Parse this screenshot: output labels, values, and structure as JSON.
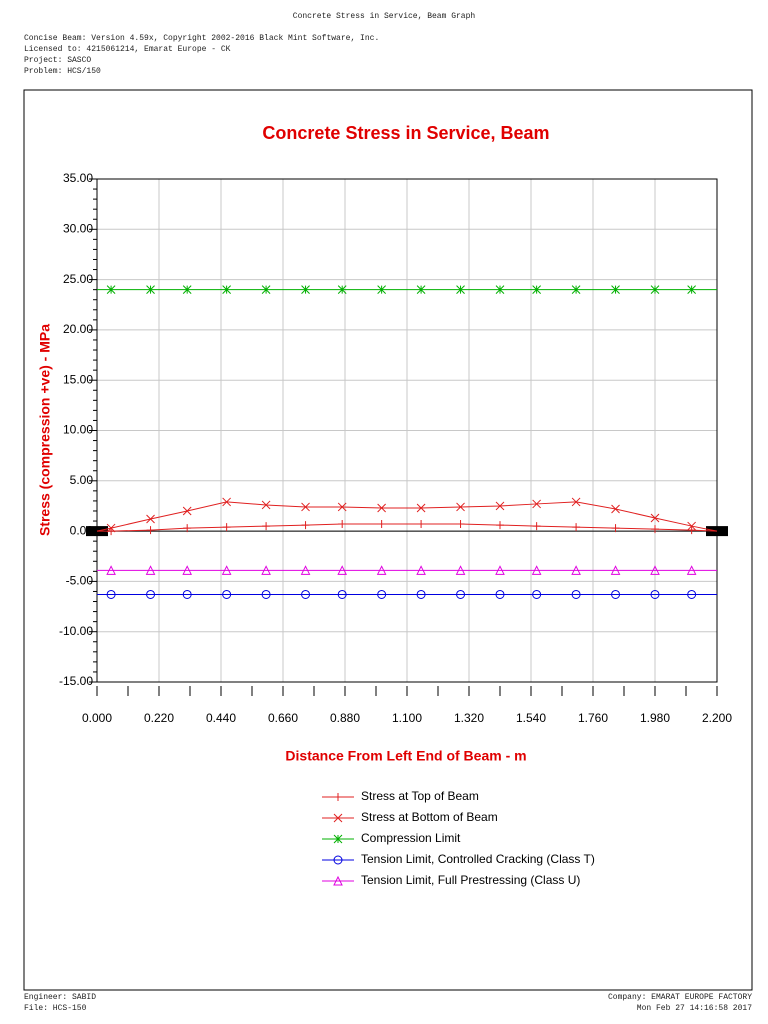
{
  "header": {
    "title": "Concrete Stress in Service, Beam Graph",
    "lines": [
      "Concise Beam: Version 4.59x, Copyright 2002-2016 Black Mint Software, Inc.",
      "Licensed to: 4215061214, Emarat Europe - CK",
      "Project: SASCO",
      "Problem: HCS/150"
    ]
  },
  "chart_data": {
    "type": "line",
    "title": "Concrete Stress in Service, Beam",
    "x_label": "Distance From Left End of Beam - m",
    "y_label": "Stress (compression +ve) - MPa",
    "x": [
      0,
      0.05,
      0.19,
      0.32,
      0.46,
      0.6,
      0.74,
      0.87,
      1.01,
      1.15,
      1.29,
      1.43,
      1.56,
      1.7,
      1.84,
      1.98,
      2.11,
      2.2
    ],
    "series": [
      {
        "name": "Stress at Top of Beam",
        "color": "#e02020",
        "marker": "plus",
        "values": [
          0,
          0,
          0.1,
          0.3,
          0.4,
          0.5,
          0.6,
          0.7,
          0.7,
          0.7,
          0.7,
          0.6,
          0.5,
          0.4,
          0.3,
          0.2,
          0.1,
          0
        ]
      },
      {
        "name": "Stress at Bottom of Beam",
        "color": "#e02020",
        "marker": "x",
        "values": [
          0,
          0.3,
          1.2,
          2.0,
          2.9,
          2.6,
          2.4,
          2.4,
          2.3,
          2.3,
          2.4,
          2.5,
          2.7,
          2.9,
          2.2,
          1.3,
          0.5,
          0
        ]
      },
      {
        "name": "Compression Limit",
        "color": "#00b000",
        "marker": "star",
        "values": [
          24,
          24,
          24,
          24,
          24,
          24,
          24,
          24,
          24,
          24,
          24,
          24,
          24,
          24,
          24,
          24,
          24,
          24
        ]
      },
      {
        "name": "Tension Limit, Controlled Cracking (Class T)",
        "color": "#0000e0",
        "marker": "circle",
        "values": [
          -6.3,
          -6.3,
          -6.3,
          -6.3,
          -6.3,
          -6.3,
          -6.3,
          -6.3,
          -6.3,
          -6.3,
          -6.3,
          -6.3,
          -6.3,
          -6.3,
          -6.3,
          -6.3,
          -6.3,
          -6.3
        ]
      },
      {
        "name": "Tension Limit, Full Prestressing (Class U)",
        "color": "#e000e0",
        "marker": "triangle",
        "values": [
          -3.9,
          -3.9,
          -3.9,
          -3.9,
          -3.9,
          -3.9,
          -3.9,
          -3.9,
          -3.9,
          -3.9,
          -3.9,
          -3.9,
          -3.9,
          -3.9,
          -3.9,
          -3.9,
          -3.9,
          -3.9
        ]
      }
    ],
    "xlim": [
      0,
      2.2
    ],
    "xticks": [
      {
        "value": 0,
        "label": "0.000"
      },
      {
        "value": 0.22,
        "label": "0.220"
      },
      {
        "value": 0.44,
        "label": "0.440"
      },
      {
        "value": 0.66,
        "label": "0.660"
      },
      {
        "value": 0.88,
        "label": "0.880"
      },
      {
        "value": 1.1,
        "label": "1.100"
      },
      {
        "value": 1.32,
        "label": "1.320"
      },
      {
        "value": 1.54,
        "label": "1.540"
      },
      {
        "value": 1.76,
        "label": "1.760"
      },
      {
        "value": 1.98,
        "label": "1.980"
      },
      {
        "value": 2.2,
        "label": "2.200"
      }
    ],
    "ylim": [
      -15,
      35
    ],
    "yticks": [
      {
        "value": -15,
        "label": "-15.00"
      },
      {
        "value": -10,
        "label": "-10.00"
      },
      {
        "value": -5,
        "label": "-5.00"
      },
      {
        "value": 0,
        "label": "0.00"
      },
      {
        "value": 5,
        "label": "5.00"
      },
      {
        "value": 10,
        "label": "10.00"
      },
      {
        "value": 15,
        "label": "15.00"
      },
      {
        "value": 20,
        "label": "20.00"
      },
      {
        "value": 25,
        "label": "25.00"
      },
      {
        "value": 30,
        "label": "30.00"
      },
      {
        "value": 35,
        "label": "35.00"
      }
    ],
    "grid": true
  },
  "footer": {
    "engineer": "Engineer: SABID",
    "file": "File: HCS-150",
    "company": "Company: EMARAT EUROPE FACTORY",
    "date": "Mon Feb 27 14:16:58 2017"
  }
}
